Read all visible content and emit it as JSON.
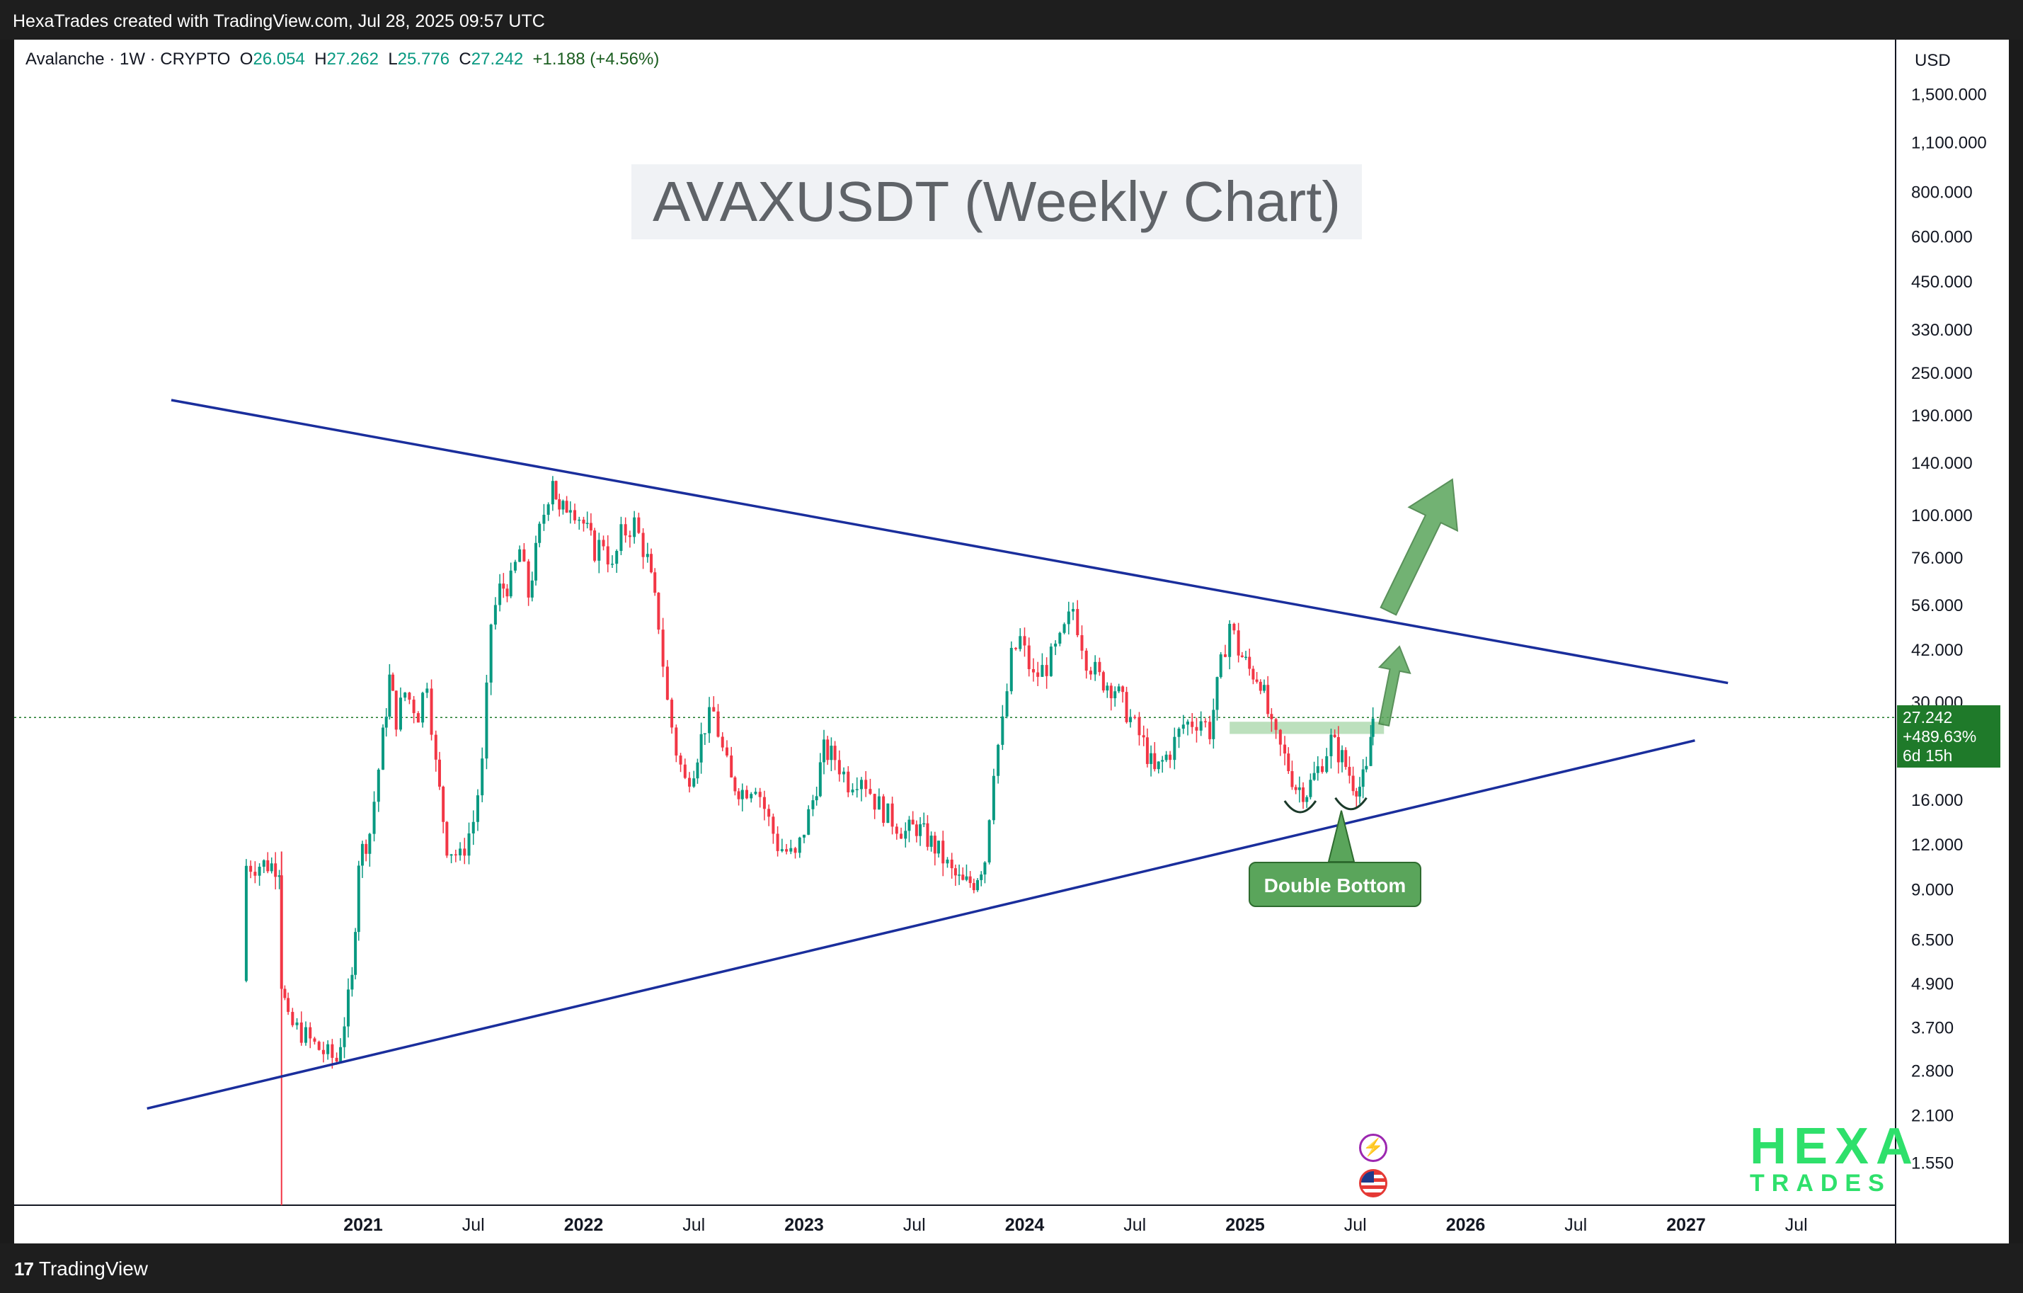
{
  "header": {
    "attribution": "HexaTrades created with TradingView.com, Jul 28, 2025 09:57 UTC"
  },
  "footer": {
    "brand": "TradingView",
    "brand_mark": "17"
  },
  "legend": {
    "symbol": "Avalanche · 1W · CRYPTO",
    "open_label": "O",
    "open": "26.054",
    "high_label": "H",
    "high": "27.262",
    "low_label": "L",
    "low": "25.776",
    "close_label": "C",
    "close": "27.242",
    "change": "+1.188 (+4.56%)"
  },
  "price_axis": {
    "currency": "USD",
    "tag_price": "27.242",
    "tag_change": "+489.63%",
    "tag_countdown": "6d 15h"
  },
  "annotations": {
    "double_bottom": "Double Bottom"
  },
  "logo": {
    "line1": "HEXA",
    "line2": "TRADES"
  },
  "icons": {
    "flash": "lightning-icon",
    "flag": "us-flag-icon"
  },
  "colors": {
    "up": "#089981",
    "down": "#f23645",
    "trendline": "#1a2e9c",
    "arrow": "#5aa55b",
    "zone": "#a5d6a7",
    "price_tag": "#1f7a2a",
    "logo": "#2ee06b"
  },
  "chart_data": {
    "type": "candlestick",
    "title": "AVAXUSDT (Weekly Chart)",
    "symbol": "AVAXUSDT",
    "timeframe": "1W",
    "y_scale": "log",
    "ylim": [
      1.3,
      1800
    ],
    "x_ticks": [
      {
        "label": "2021",
        "t": 2021.0
      },
      {
        "label": "Jul",
        "t": 2021.5
      },
      {
        "label": "2022",
        "t": 2022.0
      },
      {
        "label": "Jul",
        "t": 2022.5
      },
      {
        "label": "2023",
        "t": 2023.0
      },
      {
        "label": "Jul",
        "t": 2023.5
      },
      {
        "label": "2024",
        "t": 2024.0
      },
      {
        "label": "Jul",
        "t": 2024.5
      },
      {
        "label": "2025",
        "t": 2025.0
      },
      {
        "label": "Jul",
        "t": 2025.5
      },
      {
        "label": "2026",
        "t": 2026.0
      },
      {
        "label": "Jul",
        "t": 2026.5
      },
      {
        "label": "2027",
        "t": 2027.0
      },
      {
        "label": "Jul",
        "t": 2027.5
      }
    ],
    "y_ticks": [
      {
        "label": "1,500.000",
        "v": 1500
      },
      {
        "label": "1,100.000",
        "v": 1100
      },
      {
        "label": "800.000",
        "v": 800
      },
      {
        "label": "600.000",
        "v": 600
      },
      {
        "label": "450.000",
        "v": 450
      },
      {
        "label": "330.000",
        "v": 330
      },
      {
        "label": "250.000",
        "v": 250
      },
      {
        "label": "190.000",
        "v": 190
      },
      {
        "label": "140.000",
        "v": 140
      },
      {
        "label": "100.000",
        "v": 100
      },
      {
        "label": "76.000",
        "v": 76
      },
      {
        "label": "56.000",
        "v": 56
      },
      {
        "label": "42.000",
        "v": 42
      },
      {
        "label": "30.000",
        "v": 30
      },
      {
        "label": "16.000",
        "v": 16
      },
      {
        "label": "12.000",
        "v": 12
      },
      {
        "label": "9.000",
        "v": 9
      },
      {
        "label": "6.500",
        "v": 6.5
      },
      {
        "label": "4.900",
        "v": 4.9
      },
      {
        "label": "3.700",
        "v": 3.7
      },
      {
        "label": "2.800",
        "v": 2.8
      },
      {
        "label": "2.100",
        "v": 2.1
      },
      {
        "label": "1.550",
        "v": 1.55
      }
    ],
    "price_path": [
      [
        2020.46,
        5.0
      ],
      [
        2020.47,
        10.5
      ],
      [
        2020.55,
        10.6
      ],
      [
        2020.62,
        10.5
      ],
      [
        2020.63,
        5.0
      ],
      [
        2020.66,
        3.8
      ],
      [
        2020.72,
        3.6
      ],
      [
        2020.78,
        3.3
      ],
      [
        2020.84,
        3.1
      ],
      [
        2020.88,
        3.0
      ],
      [
        2020.95,
        5.0
      ],
      [
        2020.98,
        11.0
      ],
      [
        2021.03,
        13.0
      ],
      [
        2021.09,
        24.0
      ],
      [
        2021.12,
        35.0
      ],
      [
        2021.15,
        27.0
      ],
      [
        2021.19,
        32.0
      ],
      [
        2021.25,
        28.0
      ],
      [
        2021.29,
        35.0
      ],
      [
        2021.33,
        20.0
      ],
      [
        2021.38,
        12.0
      ],
      [
        2021.44,
        11.0
      ],
      [
        2021.5,
        14.0
      ],
      [
        2021.54,
        20.0
      ],
      [
        2021.58,
        50.0
      ],
      [
        2021.62,
        62.0
      ],
      [
        2021.67,
        65.0
      ],
      [
        2021.71,
        80.0
      ],
      [
        2021.75,
        60.0
      ],
      [
        2021.8,
        90.0
      ],
      [
        2021.86,
        130.0
      ],
      [
        2021.89,
        100.0
      ],
      [
        2021.94,
        110.0
      ],
      [
        2022.0,
        95.0
      ],
      [
        2022.05,
        80.0
      ],
      [
        2022.09,
        85.0
      ],
      [
        2022.13,
        70.0
      ],
      [
        2022.17,
        88.0
      ],
      [
        2022.23,
        95.0
      ],
      [
        2022.29,
        75.0
      ],
      [
        2022.34,
        50.0
      ],
      [
        2022.38,
        30.0
      ],
      [
        2022.42,
        22.0
      ],
      [
        2022.46,
        18.0
      ],
      [
        2022.5,
        20.0
      ],
      [
        2022.55,
        26.0
      ],
      [
        2022.59,
        28.0
      ],
      [
        2022.63,
        22.0
      ],
      [
        2022.67,
        18.0
      ],
      [
        2022.72,
        17.0
      ],
      [
        2022.78,
        18.0
      ],
      [
        2022.84,
        14.0
      ],
      [
        2022.88,
        12.0
      ],
      [
        2022.92,
        11.5
      ],
      [
        2022.96,
        11.0
      ],
      [
        2023.04,
        16.0
      ],
      [
        2023.09,
        22.0
      ],
      [
        2023.14,
        21.0
      ],
      [
        2023.2,
        18.0
      ],
      [
        2023.26,
        19.0
      ],
      [
        2023.32,
        16.0
      ],
      [
        2023.38,
        14.5
      ],
      [
        2023.46,
        13.0
      ],
      [
        2023.51,
        13.5
      ],
      [
        2023.56,
        12.5
      ],
      [
        2023.61,
        11.5
      ],
      [
        2023.67,
        10.0
      ],
      [
        2023.72,
        9.3
      ],
      [
        2023.77,
        9.5
      ],
      [
        2023.82,
        11.0
      ],
      [
        2023.86,
        20.0
      ],
      [
        2023.9,
        26.0
      ],
      [
        2023.94,
        40.0
      ],
      [
        2023.98,
        45.0
      ],
      [
        2024.04,
        35.0
      ],
      [
        2024.1,
        38.0
      ],
      [
        2024.16,
        44.0
      ],
      [
        2024.22,
        55.0
      ],
      [
        2024.28,
        40.0
      ],
      [
        2024.34,
        35.0
      ],
      [
        2024.41,
        33.0
      ],
      [
        2024.48,
        27.0
      ],
      [
        2024.54,
        23.0
      ],
      [
        2024.59,
        19.0
      ],
      [
        2024.66,
        22.0
      ],
      [
        2024.72,
        26.0
      ],
      [
        2024.8,
        27.0
      ],
      [
        2024.84,
        25.0
      ],
      [
        2024.89,
        38.0
      ],
      [
        2024.93,
        50.0
      ],
      [
        2024.97,
        42.0
      ],
      [
        2025.02,
        37.0
      ],
      [
        2025.07,
        35.0
      ],
      [
        2025.12,
        25.0
      ],
      [
        2025.18,
        21.0
      ],
      [
        2025.23,
        17.5
      ],
      [
        2025.28,
        17.0
      ],
      [
        2025.33,
        19.5
      ],
      [
        2025.39,
        23.5
      ],
      [
        2025.44,
        21.0
      ],
      [
        2025.49,
        18.0
      ],
      [
        2025.52,
        17.5
      ],
      [
        2025.55,
        19.0
      ],
      [
        2025.57,
        24.0
      ],
      [
        2025.58,
        27.242
      ]
    ],
    "trendlines": [
      {
        "name": "upper",
        "from": [
          2020.13,
          210.0
        ],
        "to": [
          2027.19,
          34.0
        ]
      },
      {
        "name": "lower",
        "from": [
          2020.02,
          2.2
        ],
        "to": [
          2027.04,
          23.5
        ]
      }
    ],
    "resistance_zone": {
      "t_start": 2024.93,
      "t_end": 2025.63,
      "low": 24.5,
      "high": 26.5
    },
    "current_price": 27.242,
    "projection_arrows": [
      {
        "from": [
          2025.63,
          26.0
        ],
        "to": [
          2025.7,
          43.0
        ]
      },
      {
        "from": [
          2025.65,
          54.0
        ],
        "to": [
          2025.94,
          126.0
        ]
      }
    ],
    "double_bottom_lows": [
      {
        "t": 2025.25,
        "v": 15.5
      },
      {
        "t": 2025.48,
        "v": 15.8
      }
    ]
  }
}
